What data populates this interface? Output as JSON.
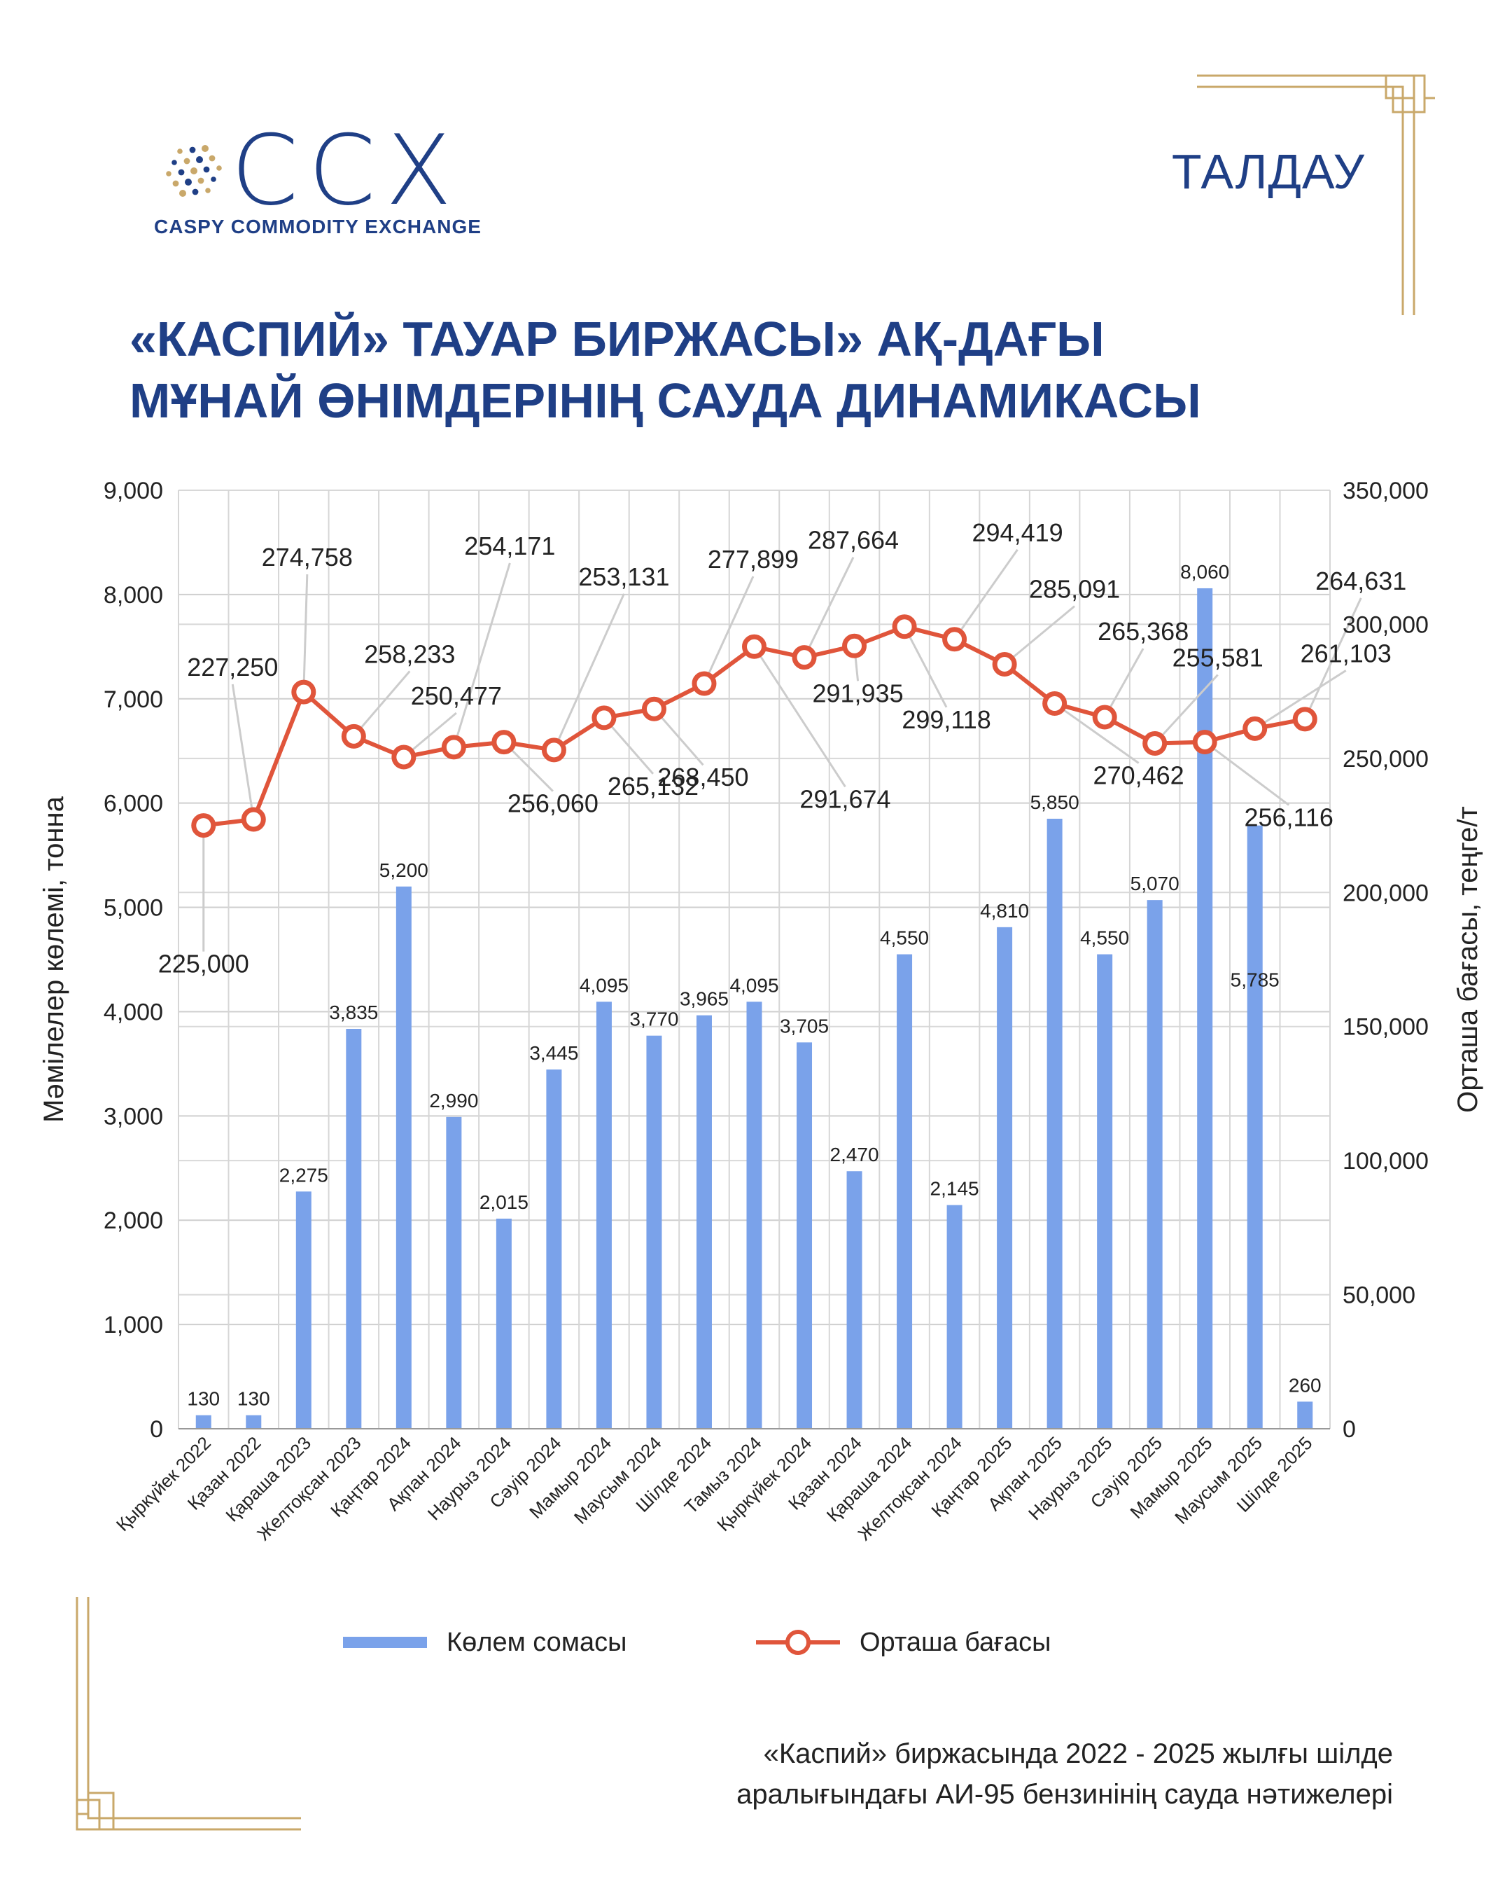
{
  "header": {
    "logo_text": "CCX",
    "logo_subtitle": "CASPY COMMODITY EXCHANGE",
    "section_tag": "ТАЛДАУ",
    "title_line1": "«КАСПИЙ» ТАУАР БИРЖАСЫ» АҚ-ДАҒЫ",
    "title_line2": "МҰНАЙ ӨНІМДЕРІНІҢ САУДА ДИНАМИКАСЫ"
  },
  "legend": {
    "volume_label": "Көлем сомасы",
    "price_label": "Орташа бағасы"
  },
  "footnote": {
    "line1": "«Каспий» биржасында 2022 - 2025 жылғы шілде",
    "line2": "аралығындағы АИ-95 бензинінің сауда нәтижелері"
  },
  "colors": {
    "accent": "#1f3f86",
    "bar": "#7aa2ea",
    "line": "#e0553b",
    "gold": "#c9a86a"
  },
  "chart_data": {
    "type": "bar",
    "categories": [
      "Қыркүйек 2022",
      "Қазан 2022",
      "Қараша 2023",
      "Желтоқсан 2023",
      "Қаңтар 2024",
      "Ақпан 2024",
      "Наурыз 2024",
      "Сәуір 2024",
      "Мамыр 2024",
      "Маусым 2024",
      "Шілде 2024",
      "Тамыз 2024",
      "Қыркүйек 2024",
      "Қазан 2024",
      "Қараша 2024",
      "Желтоқсан 2024",
      "Қаңтар 2025",
      "Ақпан 2025",
      "Наурыз 2025",
      "Сәуір 2025",
      "Мамыр 2025",
      "Маусым 2025",
      "Шілде 2025"
    ],
    "series": [
      {
        "name": "Көлем сомасы",
        "type": "bar",
        "axis": "left",
        "values": [
          130,
          130,
          2275,
          3835,
          5200,
          2990,
          2015,
          3445,
          4095,
          3770,
          3965,
          4095,
          3705,
          2470,
          4550,
          2145,
          4810,
          5850,
          4550,
          5070,
          8060,
          5785,
          260
        ],
        "labels": [
          "130",
          "130",
          "2,275",
          "3,835",
          "5,200",
          "2,990",
          "2,015",
          "3,445",
          "4,095",
          "3,770",
          "3,965",
          "4,095",
          "3,705",
          "2,470",
          "4,550",
          "2,145",
          "4,810",
          "5,850",
          "4,550",
          "5,070",
          "8,060",
          "5,785",
          "260"
        ]
      },
      {
        "name": "Орташа бағасы",
        "type": "line",
        "axis": "right",
        "values": [
          225000,
          227250,
          274758,
          258233,
          250477,
          254171,
          256060,
          253131,
          265132,
          268450,
          277899,
          291674,
          287664,
          291935,
          299118,
          294419,
          285091,
          270462,
          265368,
          255581,
          256116,
          261103,
          264631
        ],
        "labels": [
          "225,000",
          "227,250",
          "274,758",
          "258,233",
          "250,477",
          "254,171",
          "256,060",
          "253,131",
          "265,132",
          "268,450",
          "277,899",
          "291,674",
          "287,664",
          "291,935",
          "299,118",
          "294,419",
          "285,091",
          "270,462",
          "265,368",
          "255,581",
          "256,116",
          "261,103",
          "264,631"
        ]
      }
    ],
    "ylabel": "Мәмілелер көлемі, тонна",
    "y2label": "Орташа бағасы, теңге/т",
    "ylim": [
      0,
      9000
    ],
    "y2lim": [
      0,
      350000
    ],
    "yticks": [
      "0",
      "1,000",
      "2,000",
      "3,000",
      "4,000",
      "5,000",
      "6,000",
      "7,000",
      "8,000",
      "9,000"
    ],
    "y2ticks": [
      "0",
      "50,000",
      "100,000",
      "150,000",
      "200,000",
      "250,000",
      "300,000",
      "350,000"
    ],
    "grid": true,
    "legend_position": "bottom"
  }
}
